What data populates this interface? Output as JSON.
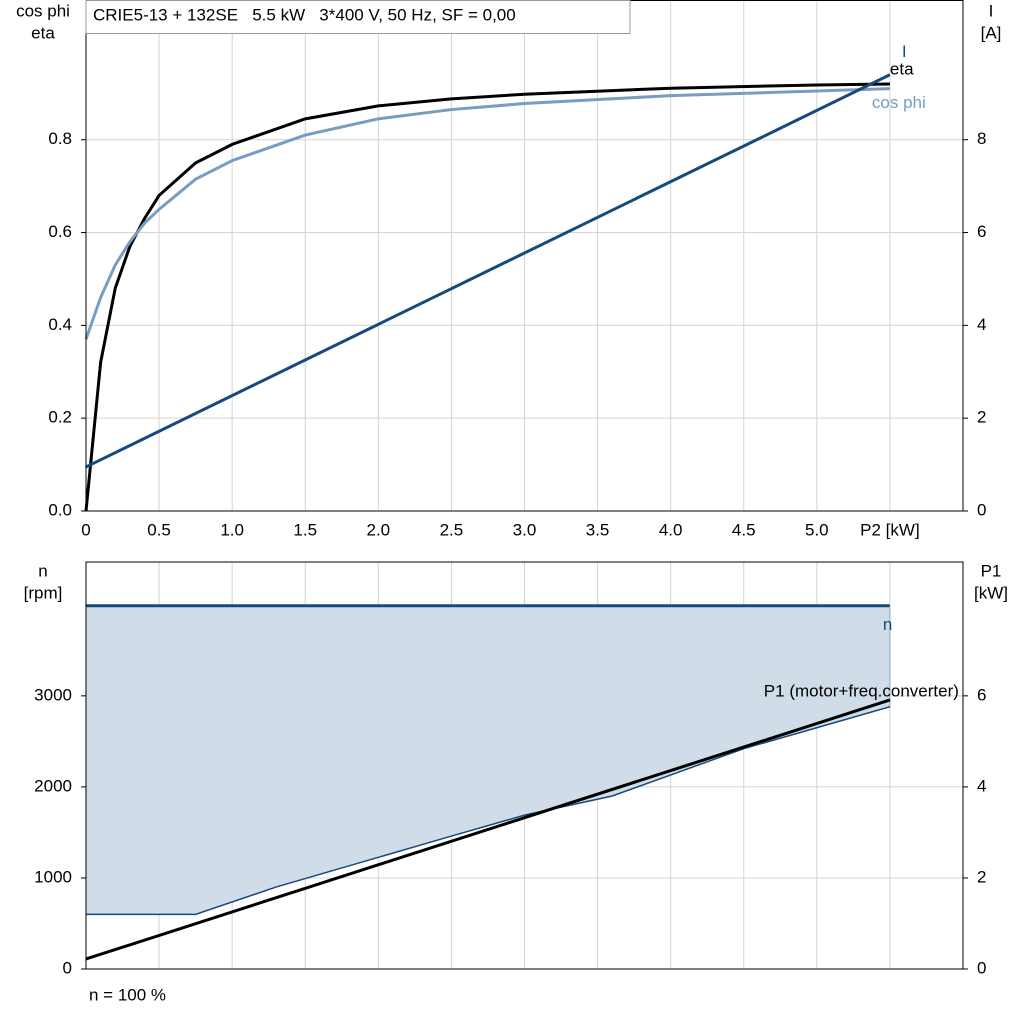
{
  "chart_data": [
    {
      "type": "line",
      "title": "CRIE5-13 + 132SE   5.5 kW   3*400 V, 50 Hz, SF = 0,00",
      "y_label": [
        "cos phi",
        "eta"
      ],
      "y2_label": [
        "I",
        "[A]"
      ],
      "xlim": [
        0,
        6
      ],
      "xticks": [
        0,
        {
          "value": 0.5,
          "label": "0.5"
        },
        {
          "value": 1,
          "label": "1.0"
        },
        1.5,
        {
          "value": 2,
          "label": "2.0"
        },
        2.5,
        {
          "value": 3,
          "label": "3.0"
        },
        3.5,
        {
          "value": 4,
          "label": "4.0"
        },
        4.5,
        {
          "value": 5,
          "label": "5.0"
        },
        {
          "value": 5.5,
          "label": "P2 [kW]"
        }
      ],
      "ylim": [
        0,
        1.1
      ],
      "yticks": [
        {
          "value": 0,
          "label": "0.0"
        },
        0.2,
        0.4,
        0.6,
        0.8
      ],
      "y2lim": [
        0,
        11
      ],
      "y2ticks": [
        0,
        2,
        4,
        6,
        8
      ],
      "grid": true,
      "show_xtick_labels": true,
      "series": [
        {
          "name": "eta",
          "color": "#000000",
          "x": [
            0,
            0.1,
            0.2,
            0.3,
            0.4,
            0.5,
            0.75,
            1,
            1.5,
            2,
            2.5,
            3,
            4,
            5,
            5.5
          ],
          "values": [
            0,
            0.32,
            0.48,
            0.57,
            0.63,
            0.68,
            0.75,
            0.79,
            0.845,
            0.873,
            0.888,
            0.898,
            0.911,
            0.918,
            0.92
          ]
        },
        {
          "name": "cos phi",
          "color": "#7a9cc0",
          "x": [
            0,
            0.1,
            0.2,
            0.3,
            0.4,
            0.5,
            0.75,
            1,
            1.5,
            2,
            2.5,
            3,
            4,
            5,
            5.5
          ],
          "values": [
            0.37,
            0.46,
            0.53,
            0.58,
            0.62,
            0.65,
            0.715,
            0.755,
            0.81,
            0.845,
            0.865,
            0.878,
            0.895,
            0.905,
            0.91
          ]
        },
        {
          "name": "I",
          "color": "#174a7c",
          "axis": "y2",
          "x": [
            0,
            5.5
          ],
          "values": [
            0.95,
            9.4
          ]
        }
      ]
    },
    {
      "type": "area",
      "y_label": [
        "n",
        "[rpm]"
      ],
      "y2_label": [
        "P1",
        "[kW]"
      ],
      "xlim": [
        0,
        6
      ],
      "xticks": [
        0,
        0.5,
        1,
        1.5,
        2,
        2.5,
        3,
        3.5,
        4,
        4.5,
        5,
        5.5
      ],
      "ylim": [
        0,
        4470
      ],
      "yticks": [
        0,
        1000,
        2000,
        3000
      ],
      "y2lim": [
        0,
        8.94
      ],
      "y2ticks": [
        0,
        2,
        4,
        6
      ],
      "grid": true,
      "show_xtick_labels": false,
      "range_fill": "#d0dce8",
      "series": [
        {
          "name": "n",
          "color": "#174a7c",
          "x": [
            0,
            5.5
          ],
          "values": [
            3990,
            3990
          ]
        },
        {
          "color": "#174a7c",
          "x": [
            0,
            0.75,
            1.3,
            2.5,
            3.0,
            3.6,
            4.5,
            5.5
          ],
          "values": [
            600,
            600,
            900,
            1460,
            1690,
            1900,
            2420,
            2880
          ]
        },
        {
          "name": "P1 (motor+freq.converter)",
          "color": "#000000",
          "axis": "y2",
          "x": [
            0,
            5.5
          ],
          "values": [
            0.22,
            5.91
          ]
        }
      ],
      "annotation": "n = 100 %"
    }
  ]
}
